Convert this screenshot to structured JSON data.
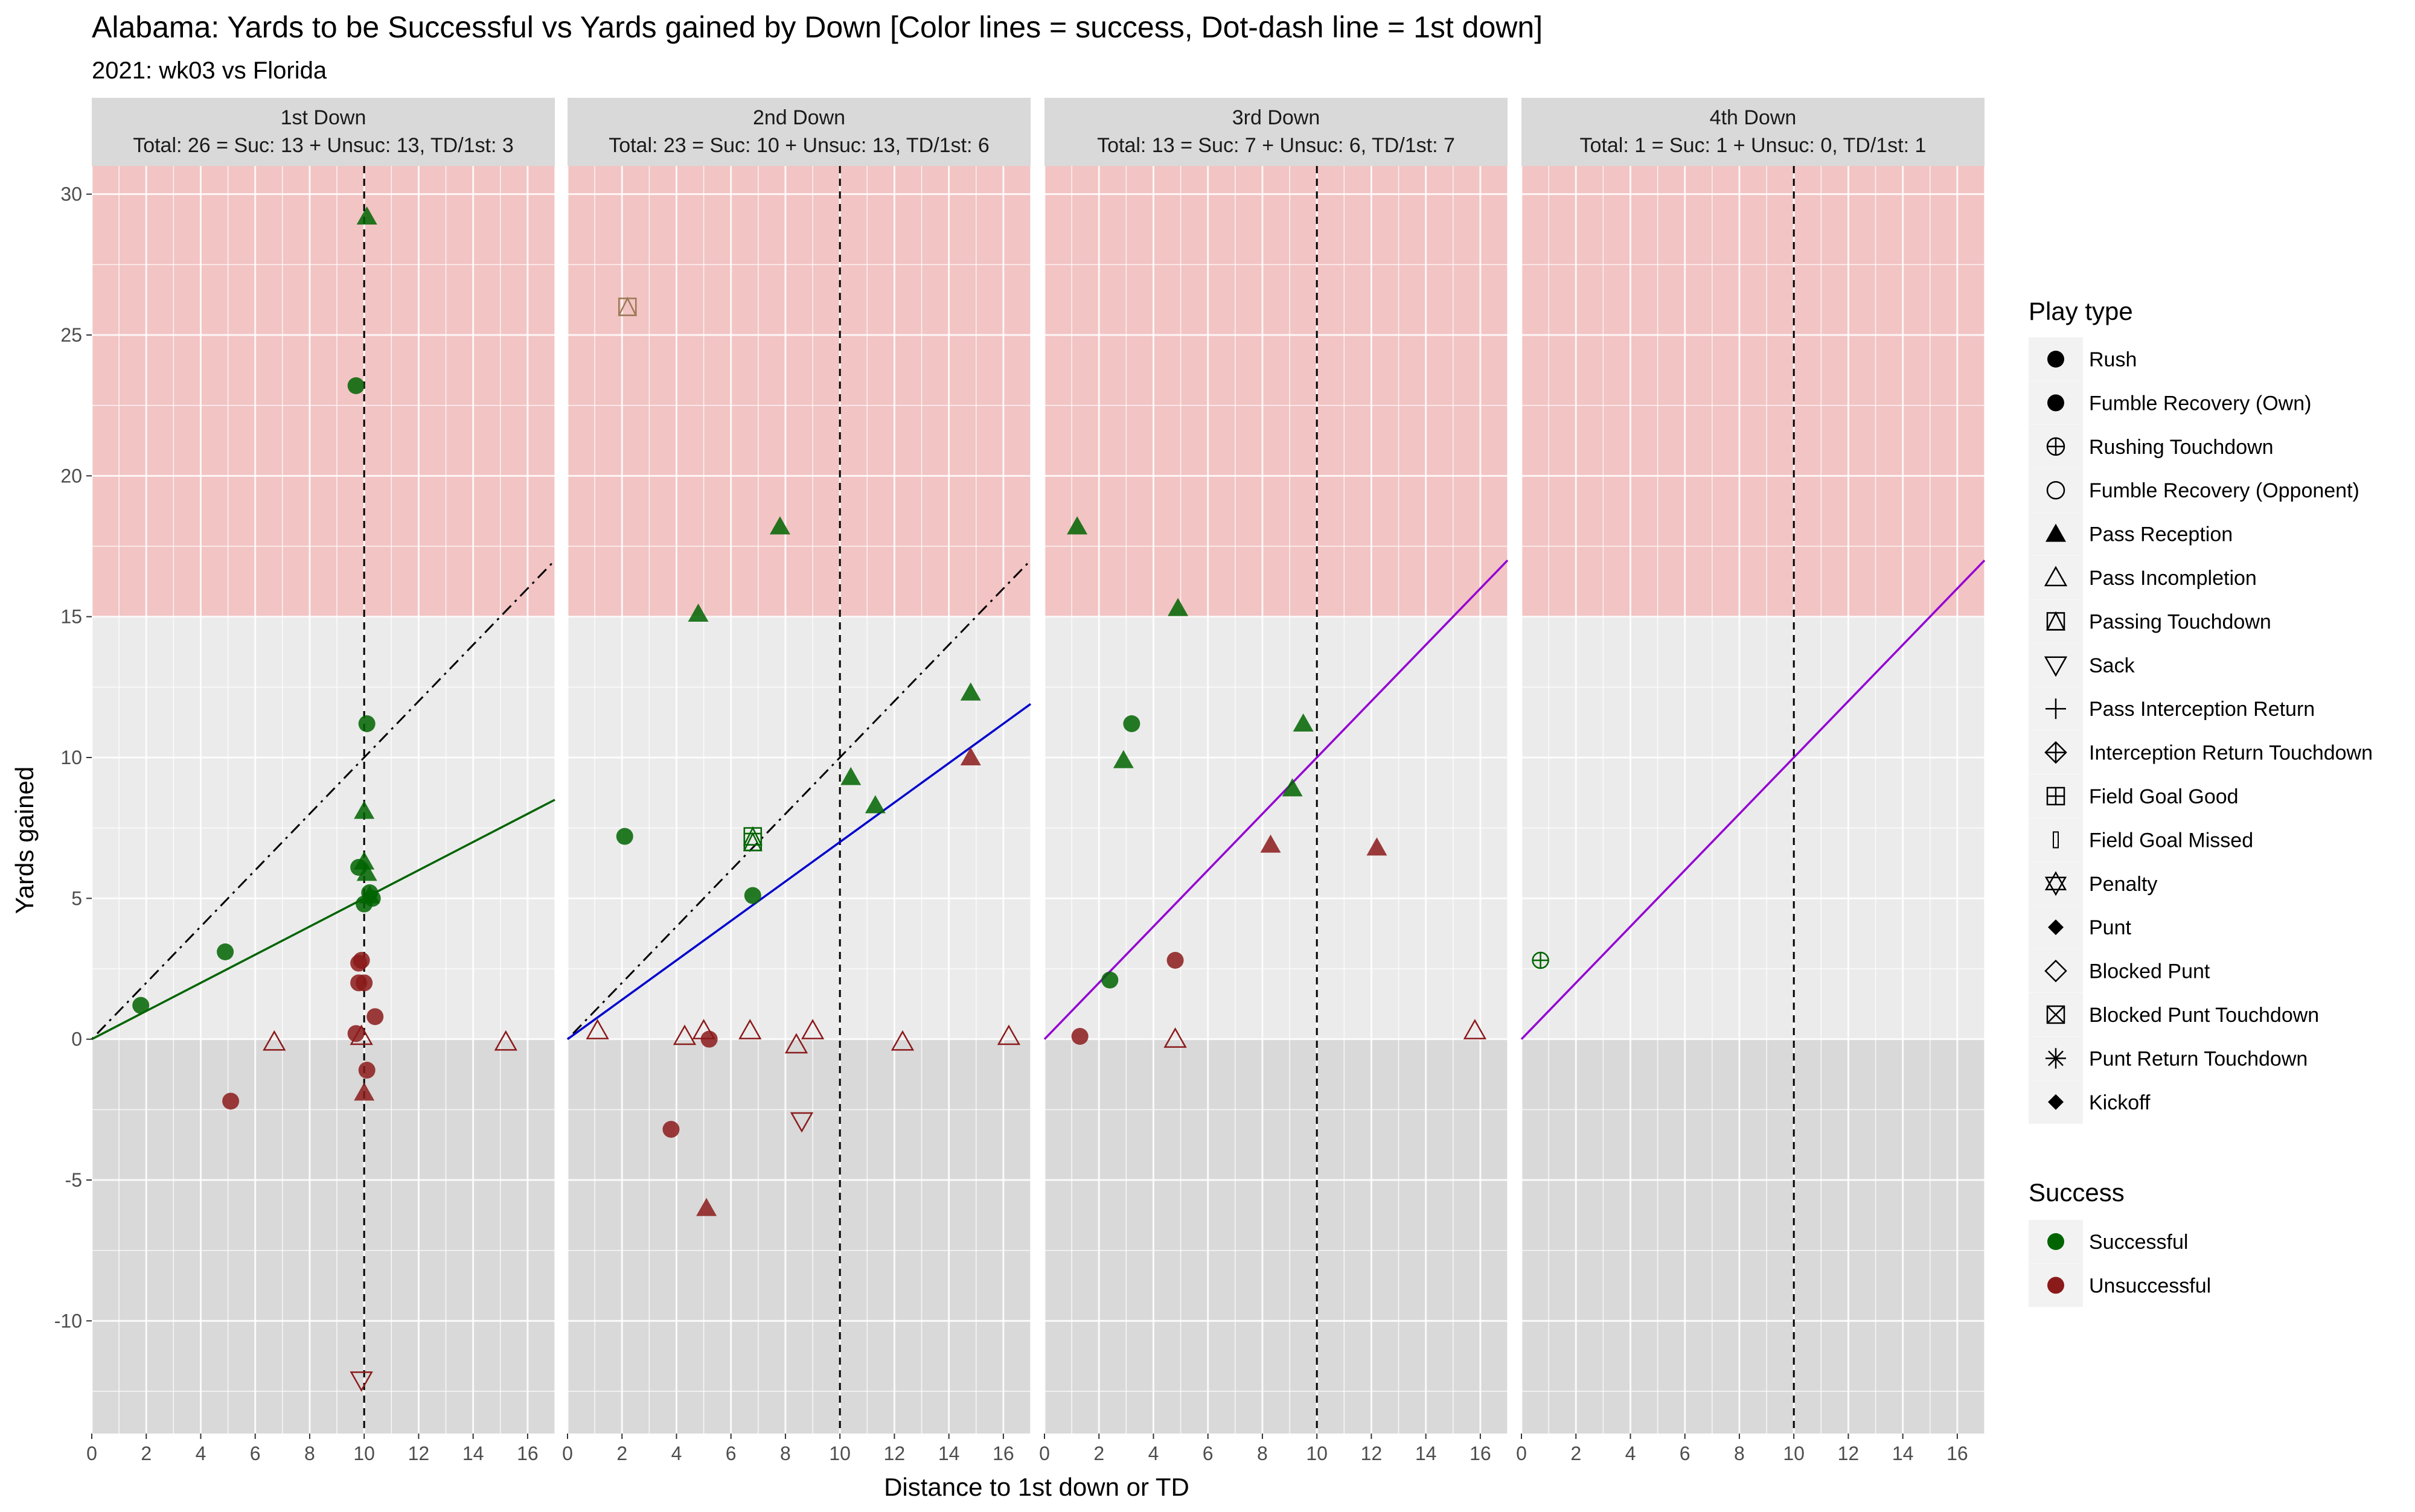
{
  "title": "Alabama: Yards to be Successful vs Yards gained by Down  [Color lines = success, Dot-dash line = 1st down]",
  "subtitle": "2021: wk03 vs Florida",
  "colors": {
    "successful": "#006400",
    "unsuccessful": "#8B1A1A",
    "td_marker": "#9C7A55",
    "big_play_band": "#F2C4C4",
    "loss_band": "#D9D9D9",
    "panel_bg": "#EBEBEB",
    "strip_bg": "#D9D9D9",
    "line_1st": "#006400",
    "line_2nd": "#0000CD",
    "line_3rd": "#9400D3",
    "line_4th": "#9400D3"
  },
  "chart_data": {
    "type": "scatter",
    "xlabel": "Distance to 1st down or TD",
    "ylabel": "Yards gained",
    "xlim": [
      0,
      17
    ],
    "ylim": [
      -14,
      31
    ],
    "x_ticks": [
      "0",
      "2",
      "4",
      "6",
      "8",
      "10",
      "12",
      "14",
      "16"
    ],
    "y_ticks": [
      "-10",
      "-5",
      "0",
      "5",
      "10",
      "15",
      "20",
      "25",
      "30"
    ],
    "big_play_threshold": 15,
    "first_down_line_x": 10,
    "grid": true,
    "legend_position": "right",
    "facets": [
      {
        "strip_title": "1st Down",
        "strip_subtitle": "Total: 26 = Suc: 13 + Unsuc: 13, TD/1st: 3",
        "success_line_slope": 0.5,
        "success_line_color": "#006400",
        "show_dot_dash": true,
        "points": [
          {
            "x": 1.8,
            "y": 1.2,
            "type": "Rush",
            "success": true
          },
          {
            "x": 4.9,
            "y": 3.1,
            "type": "Rush",
            "success": true
          },
          {
            "x": 9.7,
            "y": 23.2,
            "type": "Rush",
            "success": true
          },
          {
            "x": 10.1,
            "y": 29.2,
            "type": "Pass Reception",
            "success": true
          },
          {
            "x": 10.1,
            "y": 11.2,
            "type": "Rush",
            "success": true
          },
          {
            "x": 10.0,
            "y": 8.1,
            "type": "Pass Reception",
            "success": true
          },
          {
            "x": 9.8,
            "y": 6.1,
            "type": "Rush",
            "success": true
          },
          {
            "x": 10.0,
            "y": 6.3,
            "type": "Pass Reception",
            "success": true
          },
          {
            "x": 10.1,
            "y": 5.9,
            "type": "Pass Reception",
            "success": true
          },
          {
            "x": 10.2,
            "y": 5.2,
            "type": "Rush",
            "success": true
          },
          {
            "x": 10.3,
            "y": 5.0,
            "type": "Rush",
            "success": true
          },
          {
            "x": 10.0,
            "y": 4.8,
            "type": "Rush",
            "success": true
          },
          {
            "x": 10.2,
            "y": 5.1,
            "type": "Pass Reception",
            "success": true
          },
          {
            "x": 9.9,
            "y": 2.8,
            "type": "Rush",
            "success": false
          },
          {
            "x": 9.8,
            "y": 2.7,
            "type": "Rush",
            "success": false
          },
          {
            "x": 9.8,
            "y": 2.0,
            "type": "Rush",
            "success": false
          },
          {
            "x": 10.0,
            "y": 2.0,
            "type": "Rush",
            "success": false
          },
          {
            "x": 10.4,
            "y": 0.8,
            "type": "Rush",
            "success": false
          },
          {
            "x": 9.7,
            "y": 0.2,
            "type": "Rush",
            "success": false
          },
          {
            "x": 9.9,
            "y": 0.1,
            "type": "Pass Incompletion",
            "success": false
          },
          {
            "x": 6.7,
            "y": -0.1,
            "type": "Pass Incompletion",
            "success": false
          },
          {
            "x": 15.2,
            "y": -0.1,
            "type": "Pass Incompletion",
            "success": false
          },
          {
            "x": 10.1,
            "y": -1.1,
            "type": "Rush",
            "success": false
          },
          {
            "x": 5.1,
            "y": -2.2,
            "type": "Rush",
            "success": false
          },
          {
            "x": 10.0,
            "y": -1.9,
            "type": "Pass Reception",
            "success": false
          },
          {
            "x": 9.9,
            "y": -12.1,
            "type": "Sack",
            "success": false
          }
        ]
      },
      {
        "strip_title": "2nd Down",
        "strip_subtitle": "Total: 23 = Suc: 10 + Unsuc: 13, TD/1st: 6",
        "success_line_slope": 0.7,
        "success_line_color": "#0000CD",
        "show_dot_dash": true,
        "points": [
          {
            "x": 2.2,
            "y": 26.0,
            "type": "Passing Touchdown",
            "success": true
          },
          {
            "x": 7.8,
            "y": 18.2,
            "type": "Pass Reception",
            "success": true
          },
          {
            "x": 4.8,
            "y": 15.1,
            "type": "Pass Reception",
            "success": true
          },
          {
            "x": 14.8,
            "y": 12.3,
            "type": "Pass Reception",
            "success": true
          },
          {
            "x": 10.4,
            "y": 9.3,
            "type": "Pass Reception",
            "success": true
          },
          {
            "x": 11.3,
            "y": 8.3,
            "type": "Pass Reception",
            "success": true
          },
          {
            "x": 2.1,
            "y": 7.2,
            "type": "Rush",
            "success": true
          },
          {
            "x": 6.8,
            "y": 7.2,
            "type": "Passing Touchdown",
            "success": true
          },
          {
            "x": 6.8,
            "y": 7.0,
            "type": "Passing Touchdown",
            "success": true
          },
          {
            "x": 6.8,
            "y": 5.1,
            "type": "Rush",
            "success": true
          },
          {
            "x": 14.8,
            "y": 10.0,
            "type": "Pass Reception",
            "success": false
          },
          {
            "x": 1.1,
            "y": 0.3,
            "type": "Pass Incompletion",
            "success": false
          },
          {
            "x": 4.3,
            "y": 0.1,
            "type": "Pass Incompletion",
            "success": false
          },
          {
            "x": 5.0,
            "y": 0.3,
            "type": "Pass Incompletion",
            "success": false
          },
          {
            "x": 5.2,
            "y": 0.0,
            "type": "Rush",
            "success": false
          },
          {
            "x": 6.7,
            "y": 0.3,
            "type": "Pass Incompletion",
            "success": false
          },
          {
            "x": 8.4,
            "y": -0.2,
            "type": "Pass Incompletion",
            "success": false
          },
          {
            "x": 9.0,
            "y": 0.3,
            "type": "Pass Incompletion",
            "success": false
          },
          {
            "x": 12.3,
            "y": -0.1,
            "type": "Pass Incompletion",
            "success": false
          },
          {
            "x": 16.2,
            "y": 0.1,
            "type": "Pass Incompletion",
            "success": false
          },
          {
            "x": 3.8,
            "y": -3.2,
            "type": "Rush",
            "success": false
          },
          {
            "x": 8.6,
            "y": -2.9,
            "type": "Sack",
            "success": false
          },
          {
            "x": 5.1,
            "y": -6.0,
            "type": "Pass Reception",
            "success": false
          }
        ]
      },
      {
        "strip_title": "3rd Down",
        "strip_subtitle": "Total: 13 = Suc: 7 + Unsuc: 6, TD/1st: 7",
        "success_line_slope": 1.0,
        "success_line_color": "#9400D3",
        "show_dot_dash": false,
        "points": [
          {
            "x": 1.2,
            "y": 18.2,
            "type": "Pass Reception",
            "success": true
          },
          {
            "x": 4.9,
            "y": 15.3,
            "type": "Pass Reception",
            "success": true
          },
          {
            "x": 3.2,
            "y": 11.2,
            "type": "Rush",
            "success": true
          },
          {
            "x": 9.5,
            "y": 11.2,
            "type": "Pass Reception",
            "success": true
          },
          {
            "x": 2.9,
            "y": 9.9,
            "type": "Pass Reception",
            "success": true
          },
          {
            "x": 9.1,
            "y": 8.9,
            "type": "Pass Reception",
            "success": true
          },
          {
            "x": 2.4,
            "y": 2.1,
            "type": "Rush",
            "success": true
          },
          {
            "x": 8.3,
            "y": 6.9,
            "type": "Pass Reception",
            "success": false
          },
          {
            "x": 12.2,
            "y": 6.8,
            "type": "Pass Reception",
            "success": false
          },
          {
            "x": 4.8,
            "y": 2.8,
            "type": "Rush",
            "success": false
          },
          {
            "x": 1.3,
            "y": 0.1,
            "type": "Rush",
            "success": false
          },
          {
            "x": 4.8,
            "y": 0.0,
            "type": "Pass Incompletion",
            "success": false
          },
          {
            "x": 15.8,
            "y": 0.3,
            "type": "Pass Incompletion",
            "success": false
          }
        ]
      },
      {
        "strip_title": "4th Down",
        "strip_subtitle": "Total: 1 = Suc: 1 + Unsuc: 0, TD/1st: 1",
        "success_line_slope": 1.0,
        "success_line_color": "#9400D3",
        "show_dot_dash": false,
        "points": [
          {
            "x": 0.7,
            "y": 2.8,
            "type": "Rushing Touchdown",
            "success": true
          }
        ]
      }
    ]
  },
  "legend": {
    "play_type_title": "Play type",
    "play_types": [
      {
        "label": "Rush",
        "icon": "filled-circle-icon"
      },
      {
        "label": "Fumble Recovery (Own)",
        "icon": "filled-circle-icon"
      },
      {
        "label": "Rushing Touchdown",
        "icon": "circle-plus-icon"
      },
      {
        "label": "Fumble Recovery (Opponent)",
        "icon": "open-circle-icon"
      },
      {
        "label": "Pass Reception",
        "icon": "filled-triangle-icon"
      },
      {
        "label": "Pass Incompletion",
        "icon": "open-triangle-icon"
      },
      {
        "label": "Passing Touchdown",
        "icon": "square-triangle-icon"
      },
      {
        "label": "Sack",
        "icon": "open-down-triangle-icon"
      },
      {
        "label": "Pass Interception Return",
        "icon": "plus-icon"
      },
      {
        "label": "Interception Return Touchdown",
        "icon": "diamond-plus-icon"
      },
      {
        "label": "Field Goal Good",
        "icon": "square-plus-icon"
      },
      {
        "label": "Field Goal Missed",
        "icon": "thin-bar-icon"
      },
      {
        "label": "Penalty",
        "icon": "star-of-david-icon"
      },
      {
        "label": "Punt",
        "icon": "filled-diamond-icon"
      },
      {
        "label": "Blocked Punt",
        "icon": "open-diamond-icon"
      },
      {
        "label": "Blocked Punt Touchdown",
        "icon": "square-x-icon"
      },
      {
        "label": "Punt Return Touchdown",
        "icon": "asterisk-icon"
      },
      {
        "label": "Kickoff",
        "icon": "filled-diamond-icon"
      }
    ],
    "success_title": "Success",
    "success_items": [
      {
        "label": "Successful",
        "color": "#006400"
      },
      {
        "label": "Unsuccessful",
        "color": "#8B1A1A"
      }
    ]
  }
}
